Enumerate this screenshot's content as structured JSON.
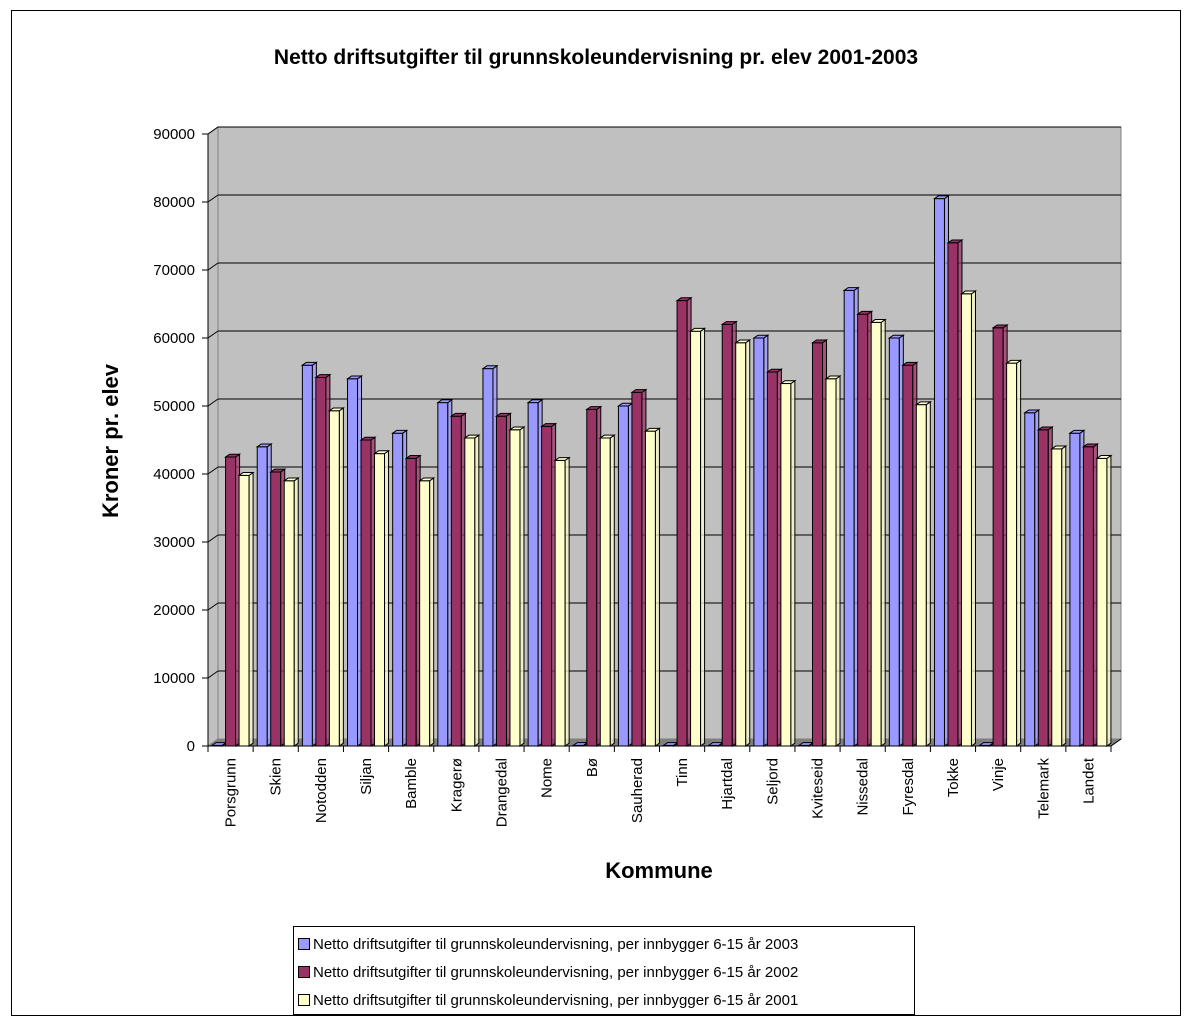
{
  "chart_data": {
    "type": "bar",
    "title": "Netto driftsutgifter til grunnskoleundervisning pr. elev  2001-2003",
    "xlabel": "Kommune",
    "ylabel": "Kroner pr. elev",
    "ylim": [
      0,
      90000
    ],
    "yticks": [
      0,
      10000,
      20000,
      30000,
      40000,
      50000,
      60000,
      70000,
      80000,
      90000
    ],
    "grid": true,
    "legend_position": "bottom",
    "categories": [
      "Porsgrunn",
      "Skien",
      "Notodden",
      "Siljan",
      "Bamble",
      "Kragerø",
      "Drangedal",
      "Nome",
      "Bø",
      "Sauherad",
      "Tinn",
      "Hjartdal",
      "Seljord",
      "Kviteseid",
      "Nissedal",
      "Fyresdal",
      "Tokke",
      "Vinje",
      "Telemark",
      "Landet"
    ],
    "series": [
      {
        "name": "Netto driftsutgifter til grunnskoleundervisning, per innbygger 6-15 år 2003",
        "color": "#9999ff",
        "values": [
          0,
          44000,
          56000,
          54000,
          46000,
          50500,
          55500,
          50500,
          0,
          50000,
          0,
          0,
          60000,
          0,
          67000,
          60000,
          80500,
          0,
          49000,
          46000
        ]
      },
      {
        "name": "Netto driftsutgifter til grunnskoleundervisning, per innbygger 6-15 år 2002",
        "color": "#993366",
        "values": [
          42500,
          40300,
          54200,
          45000,
          42300,
          48500,
          48500,
          47000,
          49500,
          52000,
          65500,
          62000,
          55000,
          59300,
          63500,
          56000,
          74000,
          61500,
          46500,
          44000
        ]
      },
      {
        "name": "Netto driftsutgifter til grunnskoleundervisning, per innbygger 6-15 år 2001",
        "color": "#ffffcc",
        "values": [
          39800,
          39000,
          49300,
          43000,
          39000,
          45300,
          46500,
          42000,
          45300,
          46300,
          61000,
          59300,
          53300,
          54000,
          62300,
          50200,
          66500,
          56300,
          43700,
          42300
        ]
      }
    ]
  }
}
